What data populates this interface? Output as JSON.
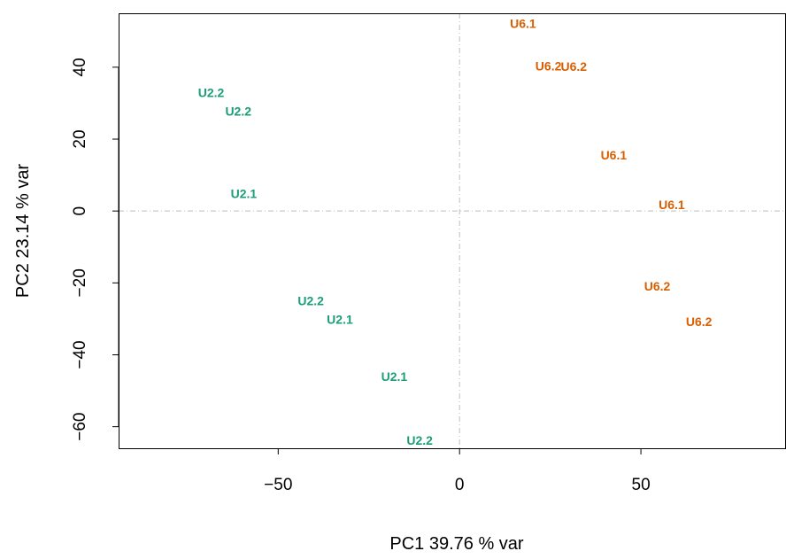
{
  "chart_data": {
    "type": "scatter",
    "xlabel": "PC1   39.76 % var",
    "ylabel": "PC2   23.14 % var",
    "xlim": [
      -94,
      90
    ],
    "ylim": [
      -66,
      55
    ],
    "x_ticks": [
      -50,
      0,
      50
    ],
    "x_tick_labels": [
      "−50",
      "0",
      "50"
    ],
    "y_ticks": [
      -60,
      -40,
      -20,
      0,
      20,
      40
    ],
    "y_tick_labels": [
      "−60",
      "−40",
      "−20",
      "0",
      "20",
      "40"
    ],
    "reference_lines": {
      "x": 0,
      "y": 0,
      "style": "dash-dot",
      "color": "#bebebe"
    },
    "grid": false,
    "colors": {
      "U2": "#1b9e77",
      "U6": "#d95f02"
    },
    "points": [
      {
        "label": "U6.1",
        "x": 17.5,
        "y": 52.2,
        "group": "U6"
      },
      {
        "label": "U6.2",
        "x": 24.5,
        "y": 40.3,
        "group": "U6"
      },
      {
        "label": "U6.2",
        "x": 31.5,
        "y": 40.2,
        "group": "U6"
      },
      {
        "label": "U2.2",
        "x": -68.5,
        "y": 33.0,
        "group": "U2"
      },
      {
        "label": "U2.2",
        "x": -61.0,
        "y": 27.8,
        "group": "U2"
      },
      {
        "label": "U6.1",
        "x": 42.5,
        "y": 15.6,
        "group": "U6"
      },
      {
        "label": "U2.1",
        "x": -59.5,
        "y": 4.8,
        "group": "U2"
      },
      {
        "label": "U6.1",
        "x": 58.5,
        "y": 1.8,
        "group": "U6"
      },
      {
        "label": "U6.2",
        "x": 54.5,
        "y": -20.9,
        "group": "U6"
      },
      {
        "label": "U2.2",
        "x": -41.0,
        "y": -25.0,
        "group": "U2"
      },
      {
        "label": "U2.1",
        "x": -33.0,
        "y": -30.1,
        "group": "U2"
      },
      {
        "label": "U6.2",
        "x": 66.0,
        "y": -30.8,
        "group": "U6"
      },
      {
        "label": "U2.1",
        "x": -18.0,
        "y": -46.1,
        "group": "U2"
      },
      {
        "label": "U2.2",
        "x": -11.0,
        "y": -63.8,
        "group": "U2"
      }
    ]
  }
}
